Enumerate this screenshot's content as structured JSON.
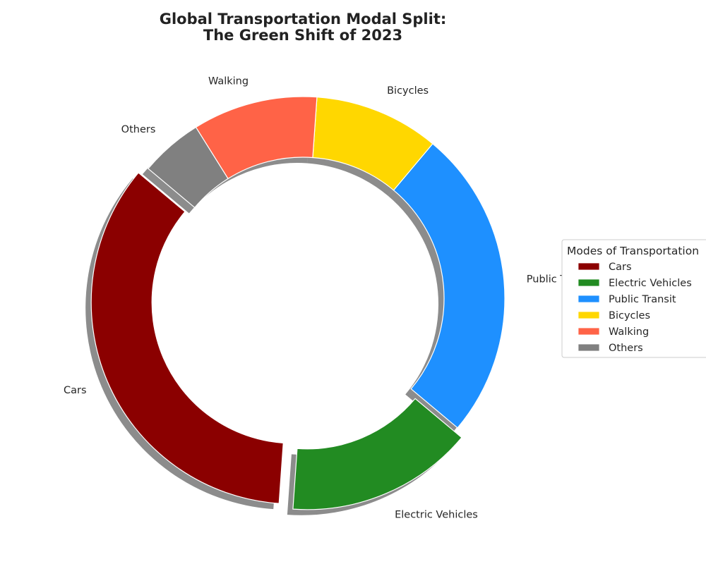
{
  "chart_data": {
    "type": "pie",
    "variant": "donut",
    "title": [
      "Global Transportation Modal Split:",
      "The Green Shift of 2023"
    ],
    "slices": [
      {
        "label": "Cars",
        "value": 35,
        "color": "#8B0000",
        "exploded": true
      },
      {
        "label": "Electric Vehicles",
        "value": 15,
        "color": "#228B22",
        "exploded": true
      },
      {
        "label": "Public Transit",
        "value": 25,
        "color": "#1E90FF",
        "exploded": false
      },
      {
        "label": "Bicycles",
        "value": 10,
        "color": "#FFD700",
        "exploded": false
      },
      {
        "label": "Walking",
        "value": 10,
        "color": "#FF6347",
        "exploded": false
      },
      {
        "label": "Others",
        "value": 5,
        "color": "#808080",
        "exploded": false
      }
    ],
    "start_angle_deg": 140,
    "direction": "counterclockwise",
    "shadow": true,
    "legend": {
      "title": "Modes of Transportation",
      "placement": "right"
    }
  }
}
